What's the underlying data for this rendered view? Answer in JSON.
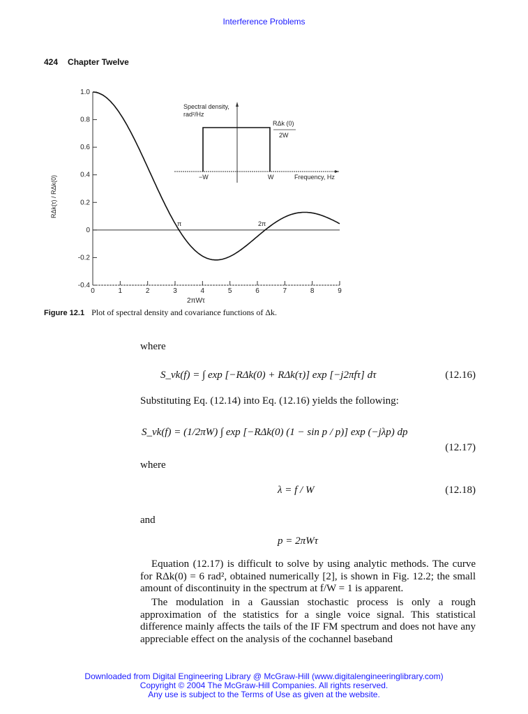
{
  "header": {
    "running_title": "Interference Problems",
    "page_number": "424",
    "chapter": "Chapter Twelve"
  },
  "figure": {
    "label": "Figure 12.1",
    "caption": "Plot of spectral density and covariance functions of Δk.",
    "inset": {
      "ylabel_line1": "Spectral density,",
      "ylabel_line2": "rad²/Hz",
      "level_num": "RΔk (0)",
      "level_den": "2W",
      "neg_w": "−W",
      "pos_w": "W",
      "xlabel": "Frequency, Hz"
    }
  },
  "chart_data": {
    "type": "line",
    "title": "",
    "xlabel": "2πWτ",
    "ylabel": "RΔk(τ) / RΔk(0)",
    "xlim": [
      0,
      9
    ],
    "ylim": [
      -0.4,
      1.0
    ],
    "xticks": [
      "0",
      "1",
      "2",
      "3",
      "4",
      "5",
      "6",
      "7",
      "8",
      "9"
    ],
    "yticks": [
      "1.0",
      "0.8",
      "0.6",
      "0.4",
      "0.2",
      "0",
      "-0.2",
      "-0.4"
    ],
    "annotations": [
      "π",
      "2π"
    ],
    "grid": false,
    "series": [
      {
        "x": [
          0,
          0.5,
          1,
          1.5,
          2,
          2.5,
          3,
          3.5,
          4,
          4.5,
          5,
          5.5,
          6,
          6.5,
          7,
          7.5,
          8,
          8.5,
          9
        ],
        "y": [
          1.0,
          0.959,
          0.841,
          0.665,
          0.455,
          0.239,
          0.047,
          -0.1,
          -0.189,
          -0.217,
          -0.192,
          -0.128,
          -0.047,
          0.033,
          0.094,
          0.125,
          0.124,
          0.094,
          0.046
        ]
      }
    ]
  },
  "body": {
    "where1": "where",
    "eq1916": "S_vk(f) = ∫ exp [−RΔk(0) + RΔk(τ)] exp [−j2πfτ] dτ",
    "eq1916_num": "(12.16)",
    "subst": "Substituting Eq. (12.14) into Eq. (12.16) yields the following:",
    "eq1917": "S_vk(f) = (1/2πW) ∫ exp [−RΔk(0) (1 − sin p / p)] exp (−jλp) dp",
    "eq1917_num": "(12.17)",
    "where2": "where",
    "eq1918": "λ = f / W",
    "eq1918_num": "(12.18)",
    "and": "and",
    "eq_p": "p = 2πWτ",
    "para1": "Equation (12.17) is difficult to solve by using analytic methods. The curve for RΔk(0) = 6 rad², obtained numerically [2], is shown in Fig. 12.2; the small amount of discontinuity in the spectrum at f/W = 1 is apparent.",
    "para2": "The modulation in a Gaussian stochastic process is only a rough approximation of the statistics for a single voice signal. This statistical difference mainly affects the tails of the IF FM spectrum and does not have any appreciable effect on the analysis of the cochannel baseband"
  },
  "footer": {
    "line1": "Downloaded from Digital Engineering Library @ McGraw-Hill (www.digitalengineeringlibrary.com)",
    "line2": "Copyright © 2004 The McGraw-Hill Companies. All rights reserved.",
    "line3": "Any use is subject to the Terms of Use as given at the website."
  },
  "colors": {
    "link": "#1a1aff",
    "ink": "#111111"
  }
}
